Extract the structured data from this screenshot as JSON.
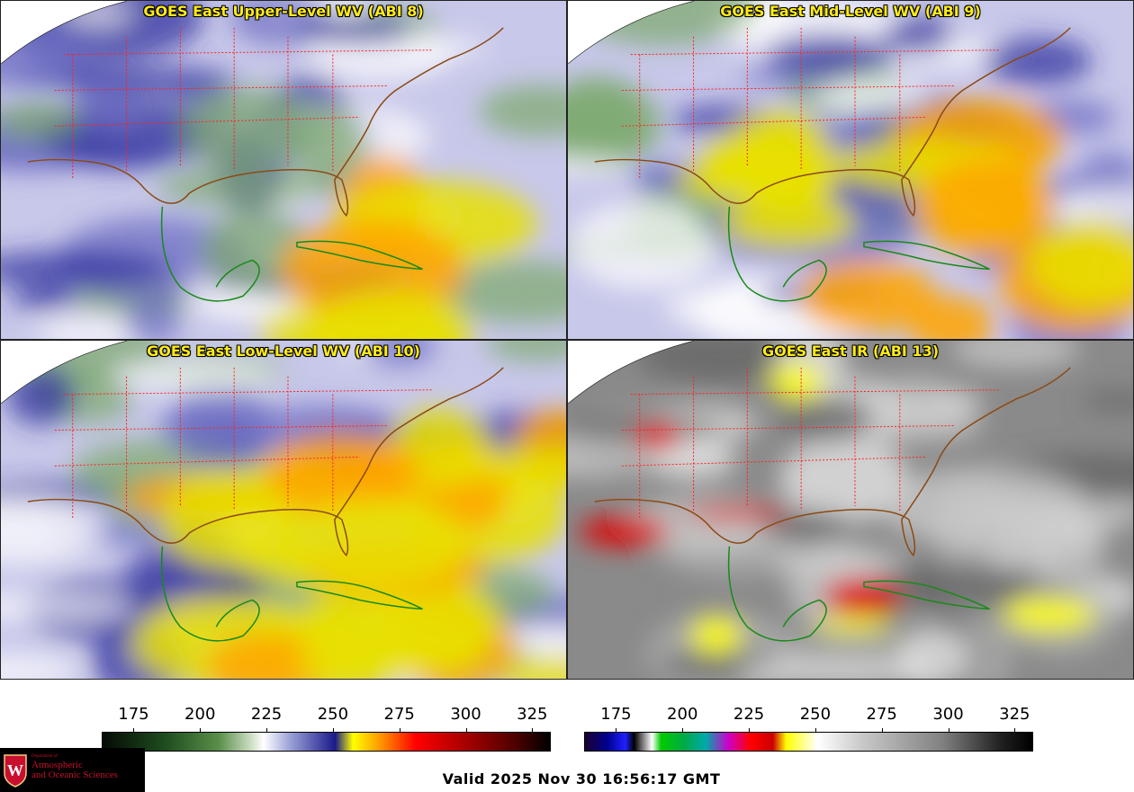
{
  "panels": [
    {
      "id": "p1",
      "title": "GOES East Upper-Level WV (ABI 8)",
      "palette": "wv",
      "dry_band": 0.15
    },
    {
      "id": "p2",
      "title": "GOES East Mid-Level WV (ABI 9)",
      "palette": "wv",
      "dry_band": 0.45
    },
    {
      "id": "p3",
      "title": "GOES East Low-Level WV (ABI 10)",
      "palette": "wv",
      "dry_band": 0.8
    },
    {
      "id": "p4",
      "title": "GOES East IR (ABI 13)",
      "palette": "ir",
      "dry_band": 0.0
    }
  ],
  "colorbars": {
    "wv": {
      "ticks": [
        "175",
        "200",
        "225",
        "250",
        "275",
        "300",
        "325"
      ],
      "min": 163,
      "max": 332
    },
    "ir": {
      "ticks": [
        "175",
        "200",
        "225",
        "250",
        "275",
        "300",
        "325"
      ],
      "min": 163,
      "max": 332
    }
  },
  "valid_time": "Valid 2025 Nov 30 16:56:17 GMT",
  "logo": {
    "line1": "Department of",
    "line2": "Atmospheric",
    "line3": "and Oceanic Sciences",
    "initial": "W"
  }
}
